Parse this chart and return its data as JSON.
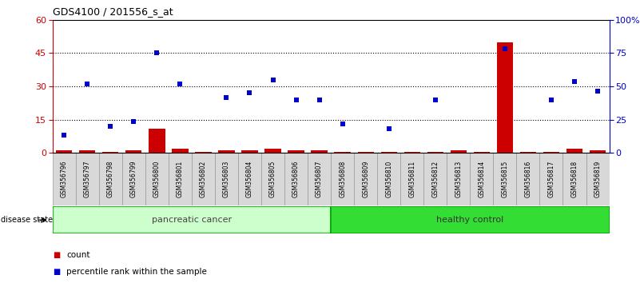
{
  "title": "GDS4100 / 201556_s_at",
  "samples": [
    "GSM356796",
    "GSM356797",
    "GSM356798",
    "GSM356799",
    "GSM356800",
    "GSM356801",
    "GSM356802",
    "GSM356803",
    "GSM356804",
    "GSM356805",
    "GSM356806",
    "GSM356807",
    "GSM356808",
    "GSM356809",
    "GSM356810",
    "GSM356811",
    "GSM356812",
    "GSM356813",
    "GSM356814",
    "GSM356815",
    "GSM356816",
    "GSM356817",
    "GSM356818",
    "GSM356819"
  ],
  "counts": [
    1,
    1,
    0.3,
    1,
    11,
    2,
    0.5,
    1,
    1,
    2,
    1,
    1,
    0.3,
    0.3,
    0.3,
    0.3,
    0.3,
    1,
    0.3,
    50,
    0.3,
    0.3,
    2,
    1
  ],
  "blue_y": [
    8,
    31,
    12,
    14,
    45,
    31,
    null,
    25,
    27,
    33,
    24,
    24,
    13,
    null,
    11,
    null,
    24,
    null,
    null,
    47,
    null,
    24,
    32,
    28
  ],
  "left_ylim": [
    0,
    60
  ],
  "right_ylim": [
    0,
    100
  ],
  "left_yticks": [
    0,
    15,
    30,
    45,
    60
  ],
  "right_yticks": [
    0,
    25,
    50,
    75,
    100
  ],
  "right_yticklabels": [
    "0",
    "25",
    "50",
    "75",
    "100%"
  ],
  "bar_color": "#cc0000",
  "dot_color": "#0000cc",
  "pancreatic_fill": "#ccffcc",
  "pancreatic_edge": "#00aa00",
  "healthy_fill": "#33dd33",
  "healthy_edge": "#00aa00",
  "label_color_left": "#cc0000",
  "label_color_right": "#0000cc",
  "title_fontsize": 9,
  "tick_fontsize": 8,
  "sample_fontsize": 5.5,
  "label_fontsize": 8,
  "n_pancreatic": 12,
  "n_healthy": 12
}
